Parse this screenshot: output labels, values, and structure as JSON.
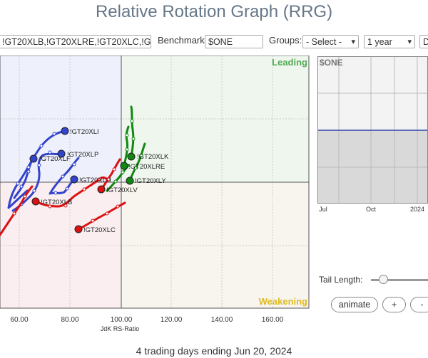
{
  "title": "Relative Rotation Graph (RRG)",
  "controls": {
    "symbols_value": "!GT20XLB,!GT20XLRE,!GT20XLC,!GT2",
    "benchmark_label": "Benchmark:",
    "benchmark_value": "$ONE",
    "groups_label": "Groups:",
    "groups_value": "- Select -",
    "period_value": "1 year",
    "extra_value": "D"
  },
  "quadrants": {
    "leading": "Leading",
    "weakening": "Weakening"
  },
  "axis": {
    "xlabel": "JdK RS-Ratio",
    "x_ticks": [
      "60.00",
      "80.00",
      "100.00",
      "120.00",
      "140.00",
      "160.00"
    ]
  },
  "mini_chart": {
    "label": "$ONE",
    "x_ticks": [
      "Jul",
      "Oct",
      "2024"
    ]
  },
  "labels": {
    "xli": "!GT20XLI",
    "xlp": "!GT20XLP",
    "xlf": "!GT20XLF",
    "xlu": "!GT20XLU",
    "xlb": "!GT20XLB",
    "xlc": "!GT20XLC",
    "xlv": "!GT20XLV",
    "xlk": "!GT20XLK",
    "xlre": "!GT20XLRE",
    "xly": "!GT20XLY"
  },
  "tail": {
    "label": "Tail Length:",
    "level": 0.15
  },
  "buttons": {
    "animate": "animate",
    "plus": "+",
    "minus": "-"
  },
  "footer": "4 trading days ending Jun 20, 2024",
  "colors": {
    "blue": "#3344cc",
    "red": "#dd1111",
    "green": "#118811",
    "leading": "#55aa55",
    "weakening": "#ddbb22"
  }
}
